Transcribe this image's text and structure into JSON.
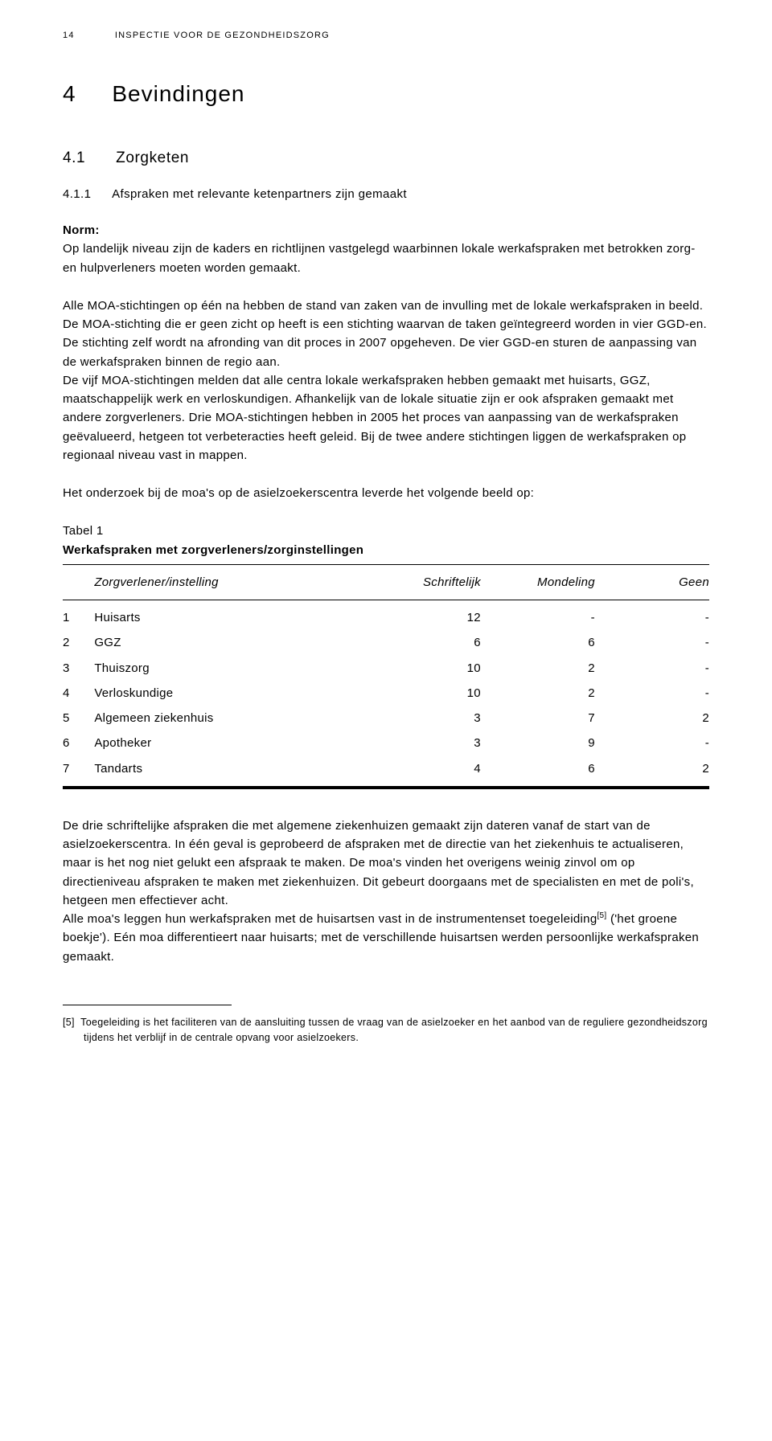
{
  "running_head": {
    "page_number": "14",
    "text": "INSPECTIE VOOR DE GEZONDHEIDSZORG"
  },
  "chapter": {
    "number": "4",
    "title": "Bevindingen"
  },
  "section": {
    "number": "4.1",
    "title": "Zorgketen"
  },
  "subsection": {
    "number": "4.1.1",
    "title": "Afspraken met relevante ketenpartners zijn gemaakt"
  },
  "norm": {
    "label": "Norm:",
    "text": "Op landelijk niveau zijn de kaders en richtlijnen vastgelegd waarbinnen lokale werkafspraken met betrokken zorg- en hulpverleners moeten worden gemaakt."
  },
  "paragraphs": {
    "p1": "Alle MOA-stichtingen op één na hebben de stand van zaken van de invulling met de lokale werkafspraken in beeld. De MOA-stichting die er geen zicht op heeft is een stichting waarvan de taken geïntegreerd worden in vier GGD-en. De stichting zelf wordt na afronding van dit proces in 2007 opgeheven. De vier GGD-en sturen de aanpassing van de werkafspraken binnen de regio aan.",
    "p2": "De vijf MOA-stichtingen melden dat alle centra lokale werkafspraken hebben gemaakt met huisarts, GGZ, maatschappelijk werk en verloskundigen. Afhankelijk van de lokale situatie zijn er ook afspraken gemaakt met andere zorgverleners. Drie MOA-stichtingen hebben in 2005 het proces van aanpassing van de werkafspraken geëvalueerd, hetgeen tot verbeteracties heeft geleid. Bij de twee andere stichtingen liggen de werkafspraken op regionaal niveau vast in mappen.",
    "p3": "Het onderzoek bij de moa's op de asielzoekerscentra leverde het volgende beeld op:"
  },
  "table": {
    "label": "Tabel 1",
    "title": "Werkafspraken met zorgverleners/zorginstellingen",
    "columns": [
      "Zorgverlener/instelling",
      "Schriftelijk",
      "Mondeling",
      "Geen"
    ],
    "rows": [
      {
        "n": "1",
        "name": "Huisarts",
        "s": "12",
        "m": "-",
        "g": "-"
      },
      {
        "n": "2",
        "name": "GGZ",
        "s": "6",
        "m": "6",
        "g": "-"
      },
      {
        "n": "3",
        "name": "Thuiszorg",
        "s": "10",
        "m": "2",
        "g": "-"
      },
      {
        "n": "4",
        "name": "Verloskundige",
        "s": "10",
        "m": "2",
        "g": "-"
      },
      {
        "n": "5",
        "name": "Algemeen ziekenhuis",
        "s": "3",
        "m": "7",
        "g": "2"
      },
      {
        "n": "6",
        "name": "Apotheker",
        "s": "3",
        "m": "9",
        "g": "-"
      },
      {
        "n": "7",
        "name": "Tandarts",
        "s": "4",
        "m": "6",
        "g": "2"
      }
    ]
  },
  "after_table": {
    "p1": "De drie schriftelijke afspraken die met algemene ziekenhuizen gemaakt zijn dateren vanaf de start van de asielzoekerscentra. In één geval is geprobeerd de afspraken met de directie van het ziekenhuis te actualiseren, maar is het nog niet gelukt een afspraak te maken. De moa's vinden het overigens weinig zinvol om op directieniveau afspraken te maken met ziekenhuizen. Dit gebeurt doorgaans met de specialisten en met de poli's, hetgeen men effectiever acht.",
    "p2a": "Alle moa's leggen hun werkafspraken met de huisartsen vast in de instrumentenset toegeleiding",
    "p2sup": "[5]",
    "p2b": " ('het groene boekje'). Eén moa differentieert naar huisarts; met de verschillende huisartsen werden persoonlijke werkafspraken gemaakt."
  },
  "footnote": {
    "marker": "[5]",
    "text": "Toegeleiding is het faciliteren van de aansluiting tussen de vraag van de asielzoeker en het aanbod van de reguliere gezondheidszorg tijdens het verblijf in de centrale opvang voor asielzoekers."
  }
}
